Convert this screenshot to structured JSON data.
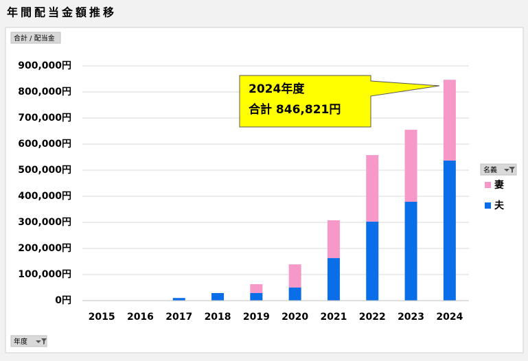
{
  "title": "年間配当金額推移",
  "chart_data": {
    "type": "stacked_bar",
    "field_buttons": {
      "values": "合計 / 配当金",
      "legend": "名義",
      "axis": "年度"
    },
    "categories": [
      "2015",
      "2016",
      "2017",
      "2018",
      "2019",
      "2020",
      "2021",
      "2022",
      "2023",
      "2024"
    ],
    "series": [
      {
        "name": "夫",
        "color": "#0a6ee8",
        "values": [
          0,
          0,
          10000,
          29000,
          29000,
          50000,
          163000,
          303000,
          379000,
          537000
        ]
      },
      {
        "name": "妻",
        "color": "#f799c8",
        "values": [
          0,
          0,
          0,
          0,
          34000,
          89000,
          145000,
          255000,
          276000,
          309821
        ]
      }
    ],
    "ylim": [
      0,
      900000
    ],
    "yticks": [
      {
        "value": 0,
        "label": "0円"
      },
      {
        "value": 100000,
        "label": "100,000円"
      },
      {
        "value": 200000,
        "label": "200,000円"
      },
      {
        "value": 300000,
        "label": "300,000円"
      },
      {
        "value": 400000,
        "label": "400,000円"
      },
      {
        "value": 500000,
        "label": "500,000円"
      },
      {
        "value": 600000,
        "label": "600,000円"
      },
      {
        "value": 700000,
        "label": "700,000円"
      },
      {
        "value": 800000,
        "label": "800,000円"
      },
      {
        "value": 900000,
        "label": "900,000円"
      }
    ],
    "grid": true,
    "legend_position": "right",
    "annotation": {
      "lines": [
        "2024年度",
        "合計 846,821円"
      ],
      "color": "#ffff00"
    }
  }
}
